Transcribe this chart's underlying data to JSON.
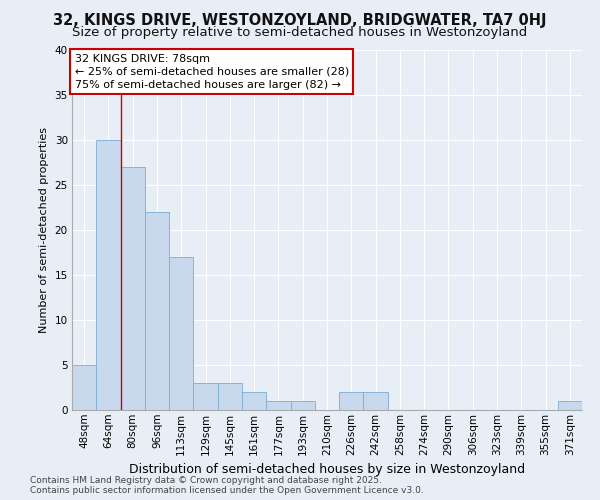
{
  "title": "32, KINGS DRIVE, WESTONZOYLAND, BRIDGWATER, TA7 0HJ",
  "subtitle": "Size of property relative to semi-detached houses in Westonzoyland",
  "xlabel": "Distribution of semi-detached houses by size in Westonzoyland",
  "ylabel": "Number of semi-detached properties",
  "categories": [
    "48sqm",
    "64sqm",
    "80sqm",
    "96sqm",
    "113sqm",
    "129sqm",
    "145sqm",
    "161sqm",
    "177sqm",
    "193sqm",
    "210sqm",
    "226sqm",
    "242sqm",
    "258sqm",
    "274sqm",
    "290sqm",
    "306sqm",
    "323sqm",
    "339sqm",
    "355sqm",
    "371sqm"
  ],
  "values": [
    5,
    30,
    27,
    22,
    17,
    3,
    3,
    2,
    1,
    1,
    0,
    2,
    2,
    0,
    0,
    0,
    0,
    0,
    0,
    0,
    1
  ],
  "bar_color": "#c8d9ed",
  "bar_edge_color": "#7badd1",
  "background_color": "#e8eef6",
  "grid_color": "#ffffff",
  "red_line_x": 2.0,
  "annotation_title": "32 KINGS DRIVE: 78sqm",
  "annotation_line1": "← 25% of semi-detached houses are smaller (28)",
  "annotation_line2": "75% of semi-detached houses are larger (82) →",
  "annotation_box_color": "#ffffff",
  "annotation_box_edge": "#cc0000",
  "footer_line1": "Contains HM Land Registry data © Crown copyright and database right 2025.",
  "footer_line2": "Contains public sector information licensed under the Open Government Licence v3.0.",
  "ylim": [
    0,
    40
  ],
  "yticks": [
    0,
    5,
    10,
    15,
    20,
    25,
    30,
    35,
    40
  ],
  "red_line_color": "#cc0000",
  "title_fontsize": 10.5,
  "subtitle_fontsize": 9.5,
  "tick_fontsize": 7.5,
  "ylabel_fontsize": 8,
  "xlabel_fontsize": 9,
  "annotation_fontsize": 8,
  "footer_fontsize": 6.5
}
